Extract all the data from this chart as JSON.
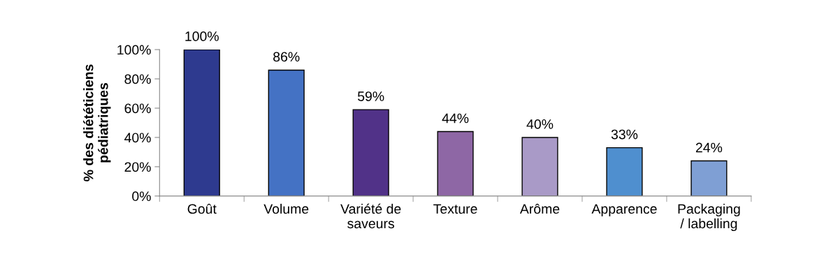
{
  "chart_data": {
    "type": "bar",
    "ylabel": "% des diététiciens\npédiatriques",
    "categories": [
      "Goût",
      "Volume",
      "Variété de\nsaveurs",
      "Texture",
      "Arôme",
      "Apparence",
      "Packaging\n/ labelling"
    ],
    "values": [
      100,
      86,
      59,
      44,
      40,
      33,
      24
    ],
    "colors": [
      "#2e3a8f",
      "#4472c4",
      "#513288",
      "#8e67a5",
      "#a99ac7",
      "#4f8fcf",
      "#7f9fd4"
    ],
    "value_labels": [
      "100%",
      "86%",
      "59%",
      "44%",
      "40%",
      "33%",
      "24%"
    ],
    "ylim": [
      0,
      100
    ],
    "yticks": [
      {
        "value": 0,
        "label": "0%"
      },
      {
        "value": 20,
        "label": "20%"
      },
      {
        "value": 40,
        "label": "40%"
      },
      {
        "value": 60,
        "label": "60%"
      },
      {
        "value": 80,
        "label": "80%"
      },
      {
        "value": 100,
        "label": "100%"
      }
    ],
    "grid": false,
    "legend": false
  }
}
